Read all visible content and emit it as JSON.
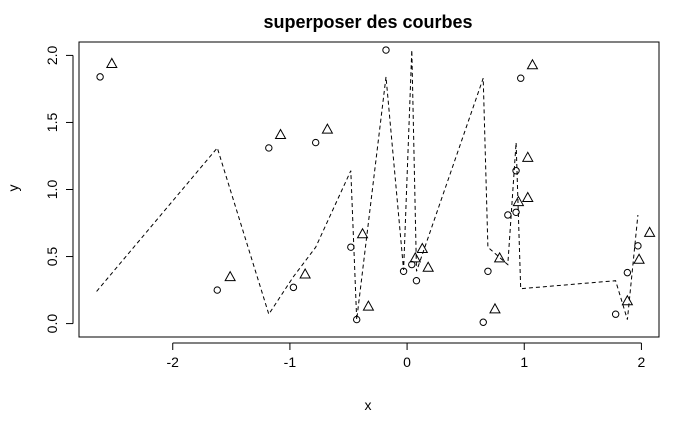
{
  "chart_data": {
    "type": "scatter",
    "title": "superposer des courbes",
    "xlabel": "x",
    "ylabel": "y",
    "xlim": [
      -2.8,
      2.15
    ],
    "ylim": [
      -0.1,
      2.1
    ],
    "xticks": [
      "-2",
      "-1",
      "0",
      "1",
      "2"
    ],
    "xtick_values": [
      -2,
      -1,
      0,
      1,
      2
    ],
    "yticks": [
      "0.0",
      "0.5",
      "1.0",
      "1.5",
      "2.0"
    ],
    "ytick_values": [
      0.0,
      0.5,
      1.0,
      1.5,
      2.0
    ],
    "grid": false,
    "series": [
      {
        "marker": "circle",
        "points": [
          [
            -2.62,
            1.84
          ],
          [
            -1.62,
            0.25
          ],
          [
            -1.18,
            1.31
          ],
          [
            -0.97,
            0.27
          ],
          [
            -0.78,
            1.35
          ],
          [
            -0.48,
            0.57
          ],
          [
            -0.43,
            0.03
          ],
          [
            -0.18,
            2.04
          ],
          [
            -0.03,
            0.39
          ],
          [
            0.04,
            0.44
          ],
          [
            0.08,
            0.32
          ],
          [
            0.65,
            0.01
          ],
          [
            0.69,
            0.39
          ],
          [
            0.86,
            0.81
          ],
          [
            0.93,
            0.83
          ],
          [
            0.93,
            1.14
          ],
          [
            0.97,
            1.83
          ],
          [
            1.78,
            0.07
          ],
          [
            1.88,
            0.38
          ],
          [
            1.97,
            0.58
          ]
        ]
      },
      {
        "marker": "triangle",
        "points": [
          [
            -2.52,
            1.94
          ],
          [
            -1.51,
            0.35
          ],
          [
            -1.08,
            1.41
          ],
          [
            -0.87,
            0.37
          ],
          [
            -0.68,
            1.45
          ],
          [
            -0.38,
            0.67
          ],
          [
            -0.33,
            0.13
          ],
          [
            0.07,
            0.49
          ],
          [
            0.13,
            0.56
          ],
          [
            0.18,
            0.42
          ],
          [
            0.75,
            0.11
          ],
          [
            0.79,
            0.49
          ],
          [
            0.95,
            0.91
          ],
          [
            1.03,
            0.94
          ],
          [
            1.03,
            1.24
          ],
          [
            1.07,
            1.93
          ],
          [
            1.88,
            0.17
          ],
          [
            1.98,
            0.48
          ],
          [
            2.07,
            0.68
          ]
        ]
      },
      {
        "line": "dashed",
        "points": [
          [
            -2.65,
            0.24
          ],
          [
            -1.62,
            1.31
          ],
          [
            -1.18,
            0.07
          ],
          [
            -0.97,
            0.35
          ],
          [
            -0.78,
            0.57
          ],
          [
            -0.48,
            1.14
          ],
          [
            -0.43,
            0.03
          ],
          [
            -0.18,
            1.84
          ],
          [
            -0.03,
            0.4
          ],
          [
            0.04,
            2.04
          ],
          [
            0.08,
            0.39
          ],
          [
            0.65,
            1.83
          ],
          [
            0.69,
            0.57
          ],
          [
            0.86,
            0.44
          ],
          [
            0.93,
            1.35
          ],
          [
            0.97,
            0.26
          ],
          [
            1.78,
            0.32
          ],
          [
            1.88,
            0.03
          ],
          [
            1.97,
            0.81
          ]
        ]
      }
    ]
  }
}
